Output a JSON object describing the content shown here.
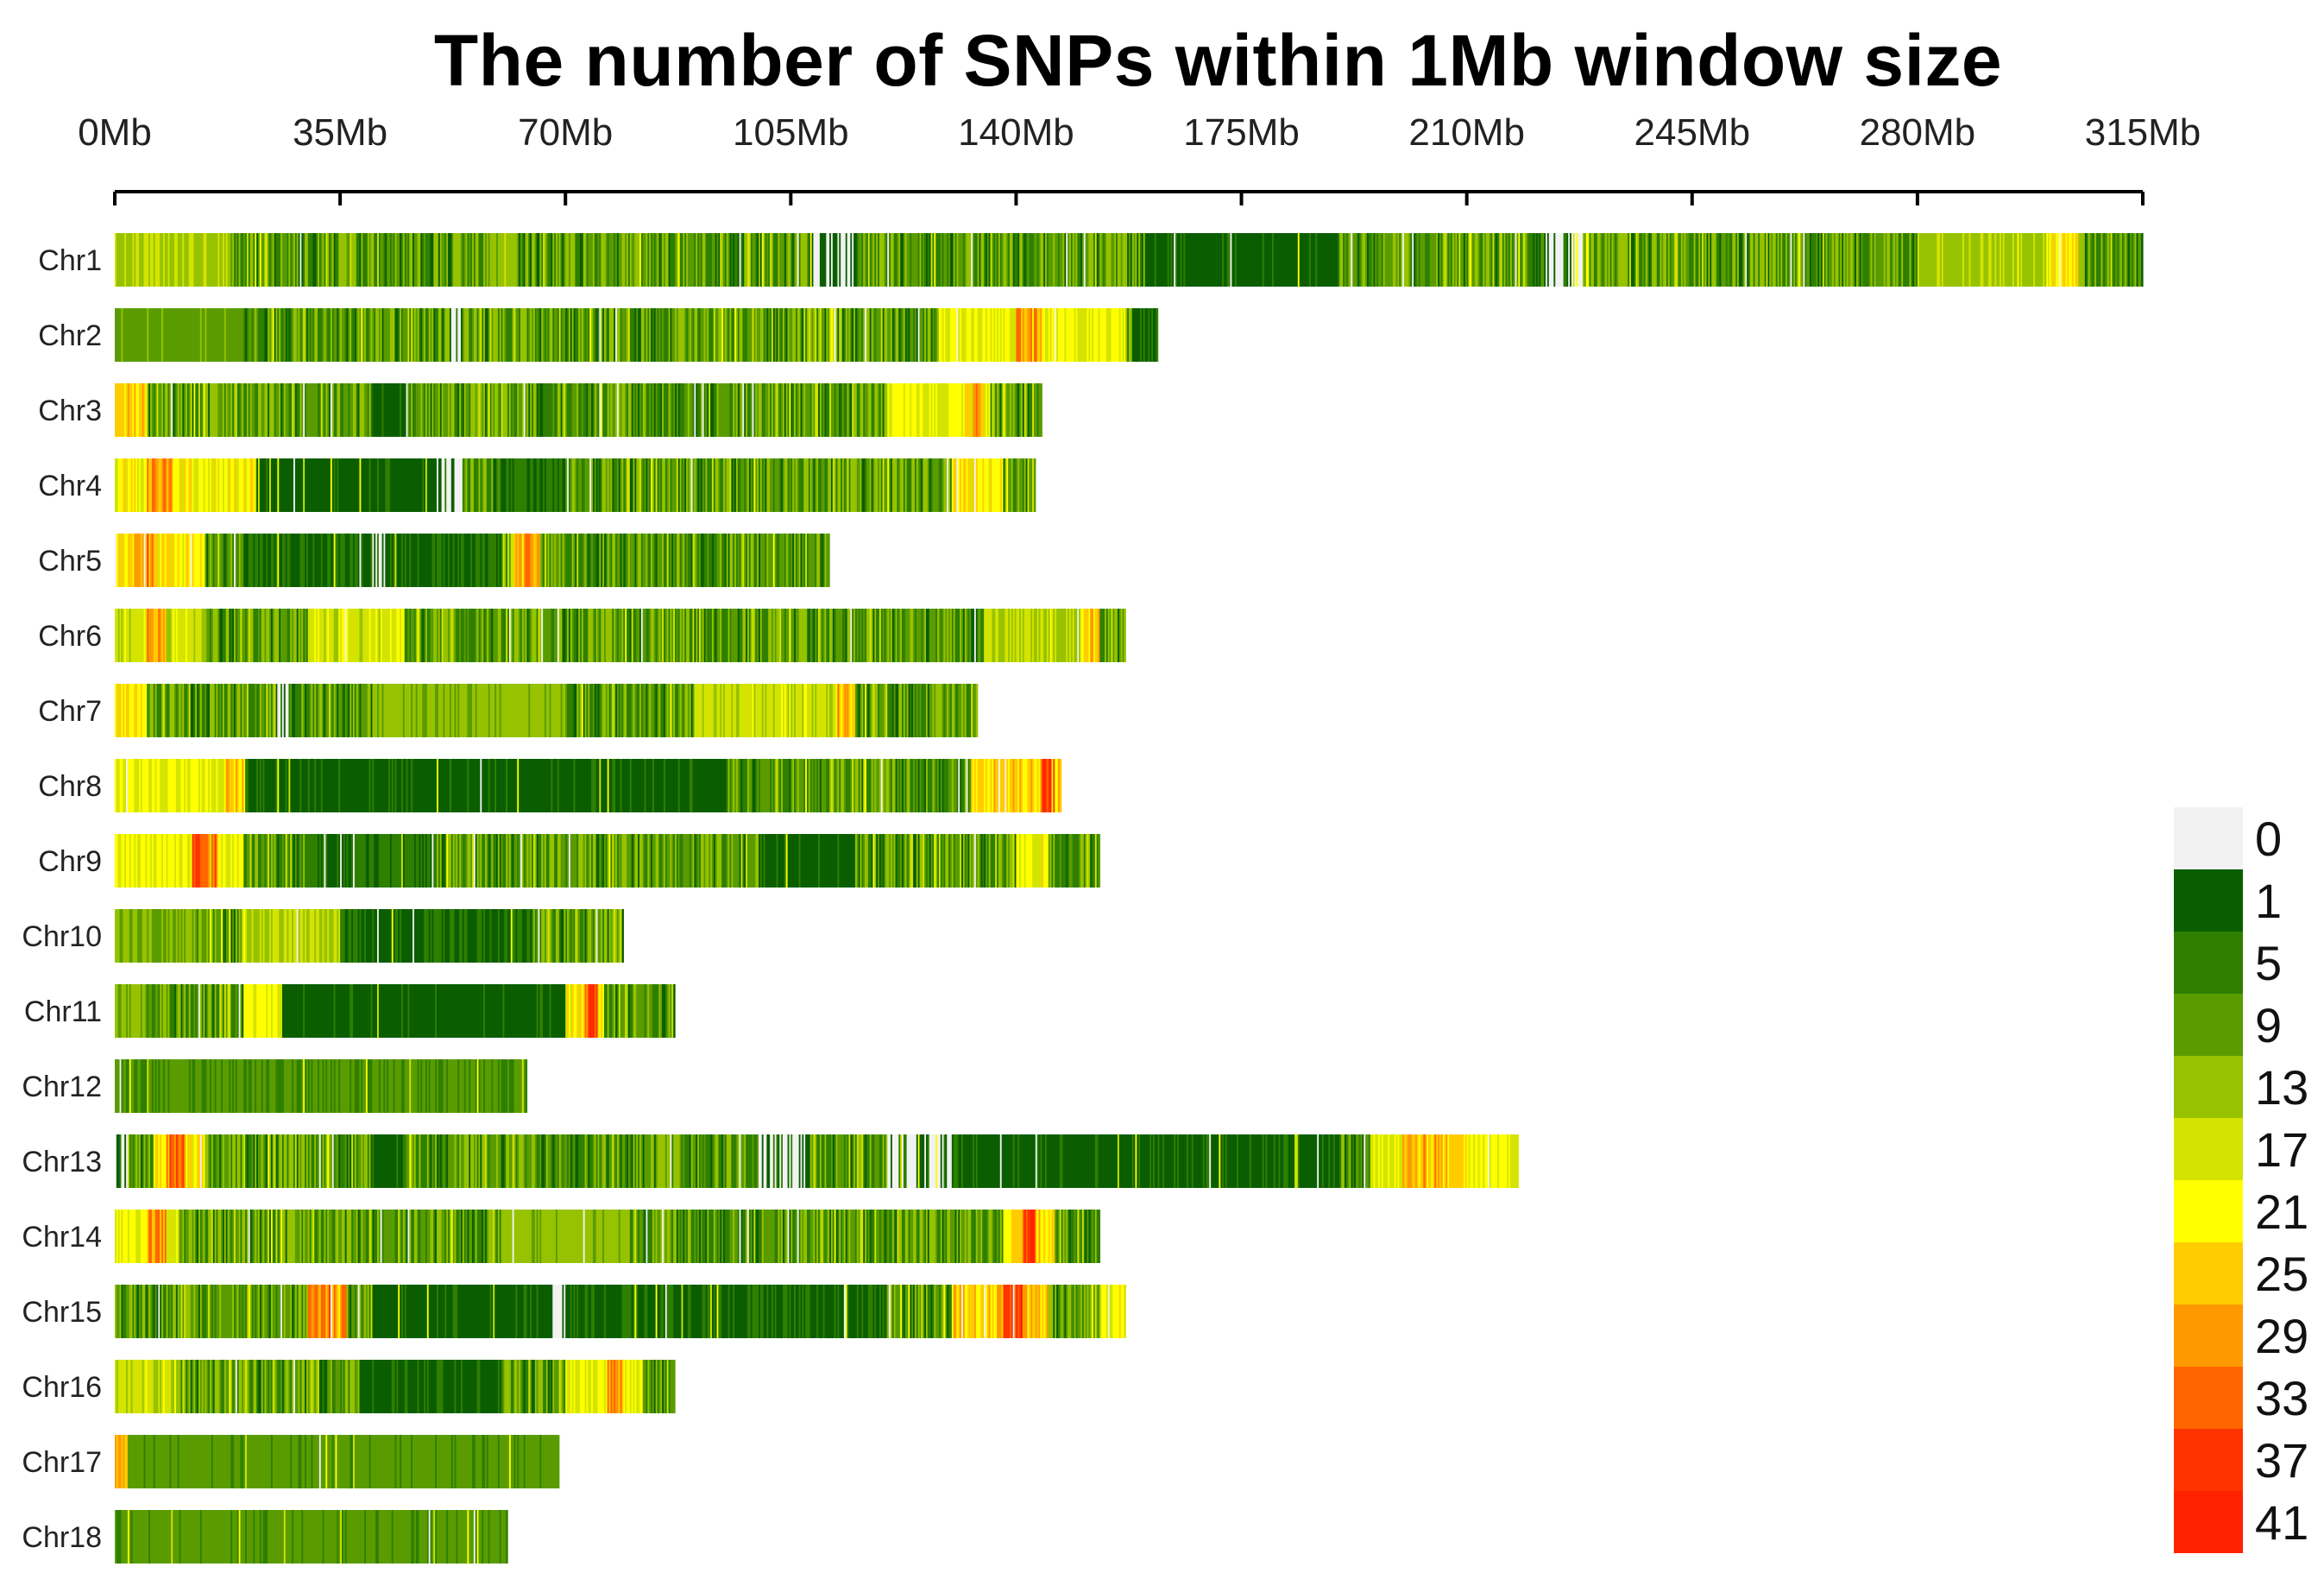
{
  "chart_data": {
    "type": "heatmap",
    "title": "The number of SNPs within 1Mb window size",
    "xlabel": "",
    "ylabel": "",
    "x_unit": "Mb",
    "xlim": [
      0,
      315
    ],
    "x_ticks": [
      0,
      35,
      70,
      105,
      140,
      175,
      210,
      245,
      280,
      315
    ],
    "x_tick_labels": [
      "0Mb",
      "35Mb",
      "70Mb",
      "105Mb",
      "140Mb",
      "175Mb",
      "210Mb",
      "245Mb",
      "280Mb",
      "315Mb"
    ],
    "window_size_mb": 1,
    "legend": {
      "position": "right-bottom",
      "labels": [
        "0",
        "1",
        "5",
        "9",
        "13",
        "17",
        "21",
        "25",
        "29",
        "33",
        "37",
        "41"
      ],
      "colors": [
        "#f2f2f2",
        "#0b5e00",
        "#2f7f00",
        "#5a9c00",
        "#97c200",
        "#d4e400",
        "#ffff00",
        "#ffcc00",
        "#ff9900",
        "#ff6600",
        "#ff3300",
        "#ff2200"
      ]
    },
    "chromosomes": [
      {
        "name": "Chr1",
        "length_mb": 315,
        "hotspots": [
          [
            0,
            18,
            16
          ],
          [
            58,
            62,
            14
          ],
          [
            108,
            115,
            1
          ],
          [
            160,
            190,
            3
          ],
          [
            222,
            228,
            0
          ],
          [
            280,
            306,
            15
          ],
          [
            300,
            305,
            24
          ]
        ]
      },
      {
        "name": "Chr2",
        "length_mb": 162,
        "hotspots": [
          [
            0,
            20,
            11
          ],
          [
            52,
            54,
            0
          ],
          [
            128,
            157,
            20
          ],
          [
            140,
            144,
            30
          ],
          [
            158,
            162,
            4
          ]
        ]
      },
      {
        "name": "Chr3",
        "length_mb": 144,
        "hotspots": [
          [
            0,
            5,
            26
          ],
          [
            40,
            45,
            3
          ],
          [
            120,
            136,
            21
          ],
          [
            132,
            135,
            30
          ]
        ]
      },
      {
        "name": "Chr4",
        "length_mb": 143,
        "hotspots": [
          [
            0,
            22,
            22
          ],
          [
            5,
            9,
            30
          ],
          [
            22,
            50,
            3
          ],
          [
            50,
            54,
            0
          ],
          [
            60,
            70,
            5
          ],
          [
            130,
            138,
            24
          ]
        ]
      },
      {
        "name": "Chr5",
        "length_mb": 111,
        "hotspots": [
          [
            0,
            14,
            24
          ],
          [
            3,
            6,
            32
          ],
          [
            20,
            60,
            4
          ],
          [
            62,
            66,
            28
          ],
          [
            40,
            42,
            0
          ]
        ]
      },
      {
        "name": "Chr6",
        "length_mb": 157,
        "hotspots": [
          [
            0,
            14,
            18
          ],
          [
            5,
            8,
            30
          ],
          [
            30,
            45,
            19
          ],
          [
            135,
            150,
            17
          ],
          [
            150,
            153,
            26
          ]
        ]
      },
      {
        "name": "Chr7",
        "length_mb": 134,
        "hotspots": [
          [
            0,
            5,
            24
          ],
          [
            25,
            27,
            0
          ],
          [
            40,
            70,
            14
          ],
          [
            90,
            115,
            18
          ],
          [
            112,
            115,
            29
          ]
        ]
      },
      {
        "name": "Chr8",
        "length_mb": 147,
        "hotspots": [
          [
            0,
            20,
            20
          ],
          [
            17,
            22,
            26
          ],
          [
            44,
            56,
            0
          ],
          [
            20,
            95,
            3
          ],
          [
            133,
            147,
            25
          ],
          [
            144,
            146,
            37
          ]
        ]
      },
      {
        "name": "Chr9",
        "length_mb": 153,
        "hotspots": [
          [
            0,
            20,
            21
          ],
          [
            12,
            16,
            36
          ],
          [
            30,
            50,
            5
          ],
          [
            100,
            115,
            3
          ],
          [
            140,
            145,
            22
          ]
        ]
      },
      {
        "name": "Chr10",
        "length_mb": 79,
        "hotspots": [
          [
            0,
            12,
            13
          ],
          [
            20,
            35,
            17
          ],
          [
            35,
            65,
            4
          ]
        ]
      },
      {
        "name": "Chr11",
        "length_mb": 87,
        "hotspots": [
          [
            0,
            5,
            14
          ],
          [
            20,
            28,
            20
          ],
          [
            26,
            75,
            3
          ],
          [
            70,
            76,
            22
          ],
          [
            73,
            75,
            38
          ]
        ]
      },
      {
        "name": "Chr12",
        "length_mb": 64,
        "hotspots": [
          [
            0,
            64,
            9
          ]
        ]
      },
      {
        "name": "Chr13",
        "length_mb": 218,
        "hotspots": [
          [
            0,
            2,
            0
          ],
          [
            6,
            14,
            24
          ],
          [
            8,
            11,
            34
          ],
          [
            40,
            45,
            3
          ],
          [
            100,
            108,
            0
          ],
          [
            120,
            130,
            0
          ],
          [
            130,
            190,
            3
          ],
          [
            195,
            218,
            20
          ],
          [
            200,
            210,
            28
          ]
        ]
      },
      {
        "name": "Chr14",
        "length_mb": 153,
        "hotspots": [
          [
            0,
            10,
            20
          ],
          [
            5,
            8,
            31
          ],
          [
            60,
            80,
            14
          ],
          [
            138,
            146,
            25
          ],
          [
            141,
            143,
            40
          ]
        ]
      },
      {
        "name": "Chr15",
        "length_mb": 157,
        "hotspots": [
          [
            30,
            36,
            32
          ],
          [
            40,
            70,
            3
          ],
          [
            68,
            72,
            0
          ],
          [
            96,
            100,
            0
          ],
          [
            70,
            120,
            4
          ],
          [
            130,
            145,
            26
          ],
          [
            138,
            141,
            40
          ],
          [
            153,
            157,
            22
          ]
        ]
      },
      {
        "name": "Chr16",
        "length_mb": 87,
        "hotspots": [
          [
            0,
            10,
            18
          ],
          [
            38,
            60,
            3
          ],
          [
            70,
            82,
            21
          ],
          [
            76,
            79,
            31
          ]
        ]
      },
      {
        "name": "Chr17",
        "length_mb": 69,
        "hotspots": [
          [
            0,
            2,
            28
          ],
          [
            2,
            69,
            10
          ]
        ]
      },
      {
        "name": "Chr18",
        "length_mb": 61,
        "hotspots": [
          [
            0,
            61,
            10
          ]
        ]
      }
    ]
  }
}
